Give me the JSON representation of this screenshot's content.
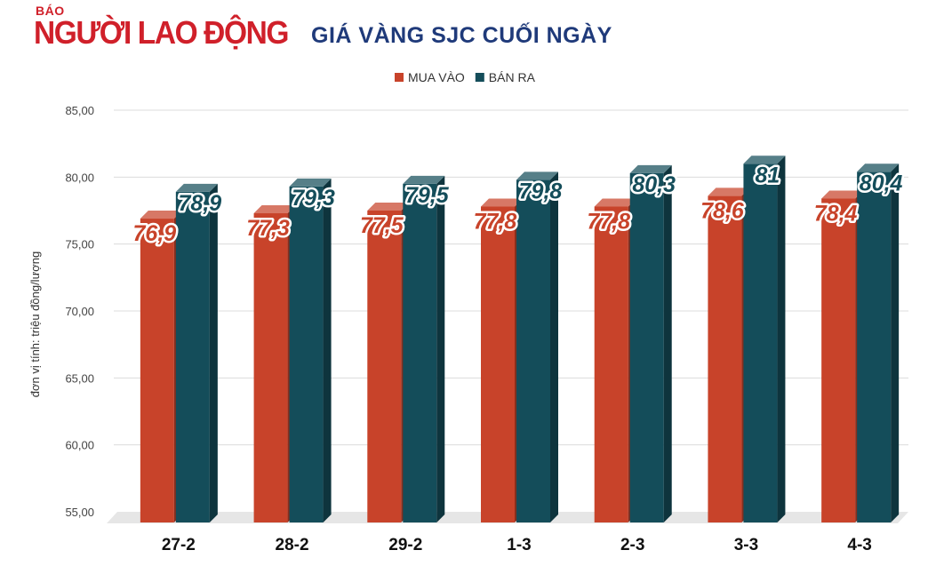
{
  "logo": {
    "prefix": "BÁO",
    "name": "NGƯỜI LAO ĐỘNG"
  },
  "chart_data": {
    "type": "bar",
    "title": "GIÁ VÀNG SJC CUỐI NGÀY",
    "ylabel": "đơn vị tính: triệu đồng/lượng",
    "xlabel": "",
    "categories": [
      "27-2",
      "28-2",
      "29-2",
      "1-3",
      "2-3",
      "3-3",
      "4-3"
    ],
    "series": [
      {
        "name": "MUA VÀO",
        "color": "#c8432a",
        "values": [
          76.9,
          77.3,
          77.5,
          77.8,
          77.8,
          78.6,
          78.4
        ],
        "labels": [
          "76,9",
          "77,3",
          "77,5",
          "77,8",
          "77,8",
          "78,6",
          "78,4"
        ]
      },
      {
        "name": "BÁN RA",
        "color": "#144d5a",
        "values": [
          78.9,
          79.3,
          79.5,
          79.8,
          80.3,
          81,
          80.4
        ],
        "labels": [
          "78,9",
          "79,3",
          "79,5",
          "79,8",
          "80,3",
          "81",
          "80,4"
        ]
      }
    ],
    "ylim": [
      55,
      85
    ],
    "yticks": [
      "55,00",
      "60,00",
      "65,00",
      "70,00",
      "75,00",
      "80,00",
      "85,00"
    ],
    "legend_position": "top-center",
    "grid": true
  }
}
